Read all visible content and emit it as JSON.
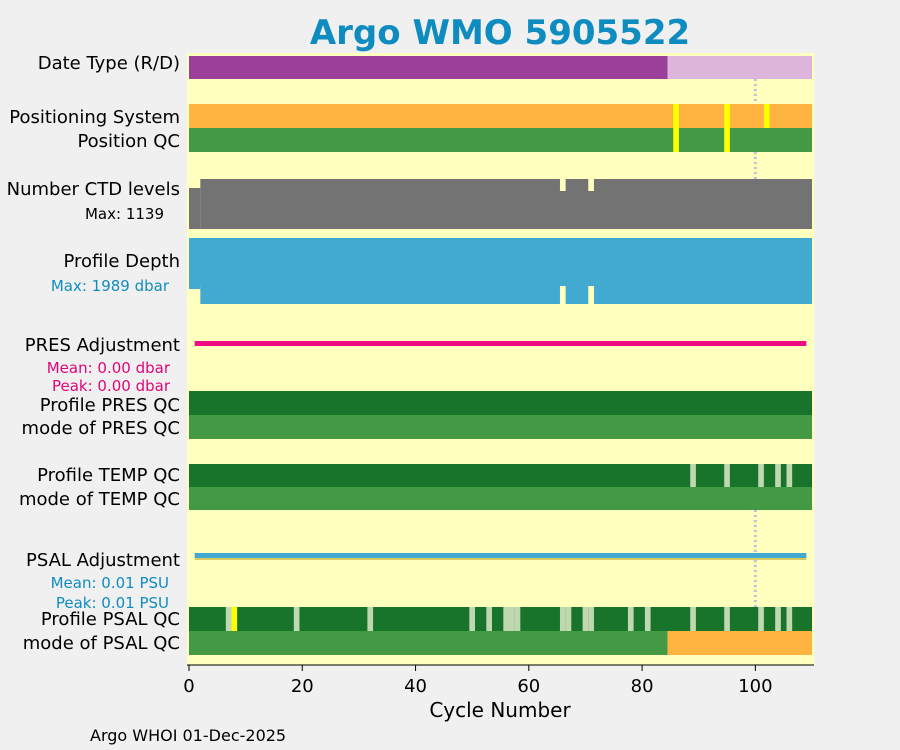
{
  "chart_data": {
    "type": "status-timeline",
    "title": "Argo WMO 5905522",
    "xlabel": "Cycle Number",
    "xlim": [
      0,
      110
    ],
    "xticks": [
      0,
      20,
      40,
      60,
      80,
      100
    ],
    "vertical_marker_cycle": 100,
    "footer": "Argo WHOI 01-Dec-2025",
    "colors": {
      "title": "#0f8cbf",
      "plot_bg": "#ffffbe",
      "date_type_r": "#9a3f9a",
      "date_type_d": "#dcb4dc",
      "positioning": "#ffb442",
      "positioning_alt": "#ffff00",
      "qc_good": "#449945",
      "qc_dark": "#17742a",
      "qc_light": "#c0d8b0",
      "qc_flag": "#ffff00",
      "ctd_levels": "#737373",
      "profile_depth": "#42a9d0",
      "pres_adjustment": "#ee0a82",
      "psal_adjustment": "#42a9d0",
      "psal_mode_delayed": "#ffb442",
      "marker": "#bfbfdc"
    },
    "labels": {
      "date_type": "Date Type (R/D)",
      "positioning_system": "Positioning System",
      "position_qc": "Position QC",
      "ctd_levels": "Number CTD levels",
      "ctd_max": "Max: 1139",
      "profile_depth": "Profile Depth",
      "depth_max": "Max: 1989 dbar",
      "pres_adjustment": "PRES Adjustment",
      "pres_mean": "Mean: 0.00 dbar",
      "pres_peak": "Peak: 0.00 dbar",
      "profile_pres_qc": "Profile PRES QC",
      "mode_pres_qc": "mode of PRES QC",
      "profile_temp_qc": "Profile TEMP QC",
      "mode_temp_qc": "mode of TEMP QC",
      "psal_adjustment": "PSAL Adjustment",
      "psal_mean": "Mean: 0.01 PSU",
      "psal_peak": "Peak: 0.01 PSU",
      "profile_psal_qc": "Profile PSAL QC",
      "mode_psal_qc": "mode of PSAL QC"
    },
    "rows": {
      "date_type": [
        {
          "from": 0,
          "to": 84.5,
          "value": "R",
          "color": "date_type_r"
        },
        {
          "from": 84.5,
          "to": 110,
          "value": "D",
          "color": "date_type_d"
        }
      ],
      "positioning_system": {
        "base_color": "positioning",
        "alt_color": "positioning_alt",
        "alt_cycles": [
          86,
          95,
          102
        ]
      },
      "position_qc": {
        "base_color": "qc_good",
        "flag_color": "qc_flag",
        "flag_cycles": [
          86,
          95
        ]
      },
      "ctd_levels": {
        "color": "ctd_levels",
        "max": 1139,
        "full_from": 2,
        "reduced_cycles": [
          0,
          1,
          66,
          71
        ],
        "gap_ranges": [
          [
            65.5,
            66.5
          ],
          [
            70.5,
            71.5
          ]
        ]
      },
      "profile_depth": {
        "color": "profile_depth",
        "max": 1989,
        "reduced_cycles": [
          0,
          1,
          66,
          71
        ]
      },
      "pres_adjustment": {
        "color": "pres_adjustment",
        "mean": 0.0,
        "peak": 0.0,
        "from": 1,
        "to": 109
      },
      "profile_pres_qc": {
        "color": "qc_dark",
        "from": 0,
        "to": 110
      },
      "mode_pres_qc": {
        "color": "qc_good",
        "from": 0,
        "to": 110
      },
      "profile_temp_qc": {
        "color": "qc_dark",
        "light_color": "qc_light",
        "light_cycles": [
          89,
          95,
          101,
          104,
          106
        ]
      },
      "mode_temp_qc": {
        "color": "qc_good",
        "from": 0,
        "to": 110
      },
      "psal_adjustment": {
        "color": "psal_adjustment",
        "mean": 0.01,
        "peak": 0.01,
        "from": 1,
        "to": 109
      },
      "profile_psal_qc": {
        "color": "qc_dark",
        "light_color": "qc_light",
        "flag_color": "qc_flag",
        "light_cycles": [
          7,
          19,
          32,
          50,
          53,
          56,
          57,
          58,
          66,
          67,
          70,
          71,
          78,
          81,
          89,
          95,
          101,
          104,
          106
        ],
        "flag_cycles": [
          8
        ]
      },
      "mode_psal_qc": [
        {
          "from": 0,
          "to": 84.5,
          "value": "A",
          "color": "qc_good"
        },
        {
          "from": 84.5,
          "to": 110,
          "value": "D",
          "color": "psal_mode_delayed"
        }
      ]
    }
  }
}
